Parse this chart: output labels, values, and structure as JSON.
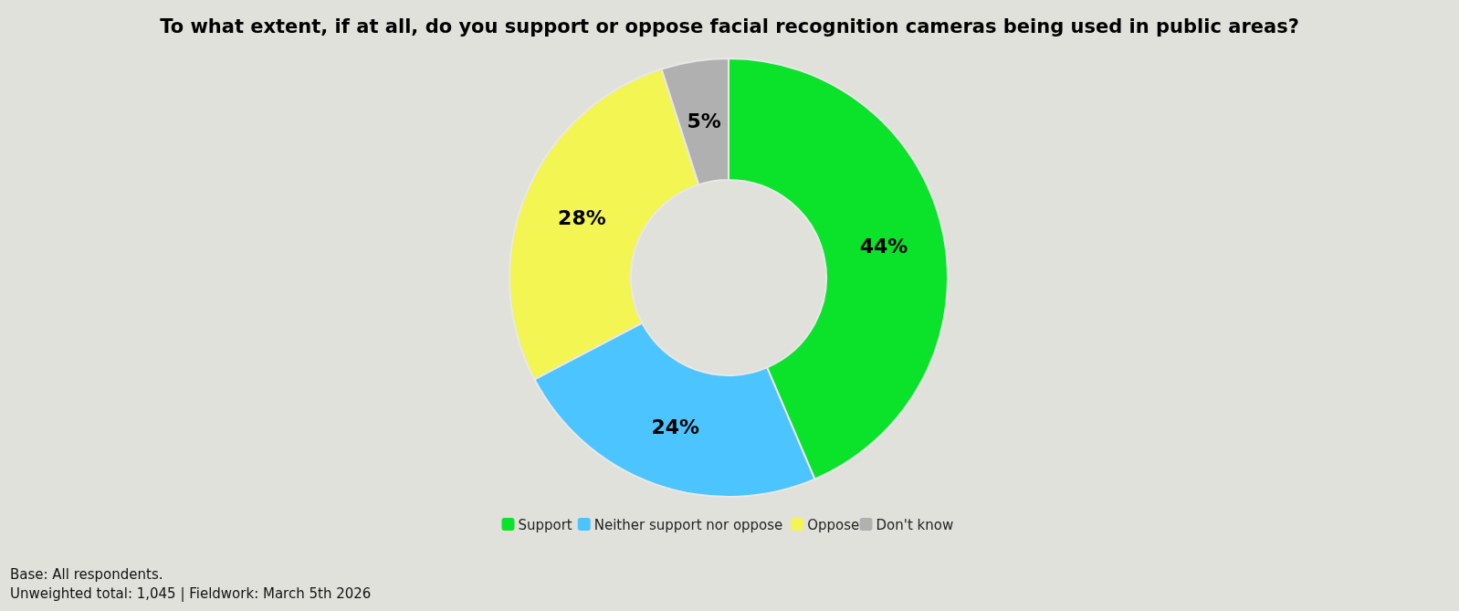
{
  "chart_data": {
    "type": "donut",
    "title": "To what extent, if at all, do you support or oppose facial recognition cameras being used in public areas?",
    "categories": [
      "Support",
      "Neither support nor oppose",
      "Oppose",
      "Don't know"
    ],
    "values": [
      44,
      24,
      28,
      5
    ],
    "colors": [
      "#0ae32a",
      "#4cc4ff",
      "#f2f552",
      "#b0b0b0"
    ],
    "value_labels": [
      "44%",
      "24%",
      "28%",
      "5%"
    ],
    "legend": "bottom",
    "annotations": [
      "Base: All respondents.",
      "Unweighted total: 1,045 | Fieldwork: March 5th 2026"
    ]
  }
}
